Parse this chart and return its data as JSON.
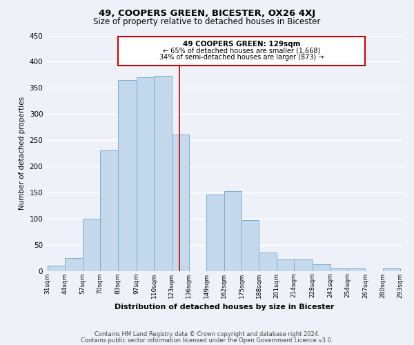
{
  "title": "49, COOPERS GREEN, BICESTER, OX26 4XJ",
  "subtitle": "Size of property relative to detached houses in Bicester",
  "xlabel": "Distribution of detached houses by size in Bicester",
  "ylabel": "Number of detached properties",
  "bar_labels": [
    "31sqm",
    "44sqm",
    "57sqm",
    "70sqm",
    "83sqm",
    "97sqm",
    "110sqm",
    "123sqm",
    "136sqm",
    "149sqm",
    "162sqm",
    "175sqm",
    "188sqm",
    "201sqm",
    "214sqm",
    "228sqm",
    "241sqm",
    "254sqm",
    "267sqm",
    "280sqm",
    "293sqm"
  ],
  "bar_heights": [
    10,
    25,
    100,
    230,
    365,
    370,
    373,
    260,
    0,
    146,
    153,
    97,
    35,
    22,
    22,
    12,
    5,
    5,
    0,
    4
  ],
  "bar_edges": [
    31,
    44,
    57,
    70,
    83,
    97,
    110,
    123,
    136,
    149,
    162,
    175,
    188,
    201,
    214,
    228,
    241,
    254,
    267,
    280,
    293
  ],
  "bar_color": "#c5d9ed",
  "bar_edgecolor": "#7aadd4",
  "property_line_x": 129,
  "property_line_color": "#cc0000",
  "annotation_title": "49 COOPERS GREEN: 129sqm",
  "annotation_line1": "← 65% of detached houses are smaller (1,668)",
  "annotation_line2": "34% of semi-detached houses are larger (873) →",
  "annotation_box_edgecolor": "#cc0000",
  "ylim": [
    0,
    450
  ],
  "footer_line1": "Contains HM Land Registry data © Crown copyright and database right 2024.",
  "footer_line2": "Contains public sector information licensed under the Open Government Licence v3.0.",
  "background_color": "#eef2f8",
  "grid_color": "#ffffff"
}
